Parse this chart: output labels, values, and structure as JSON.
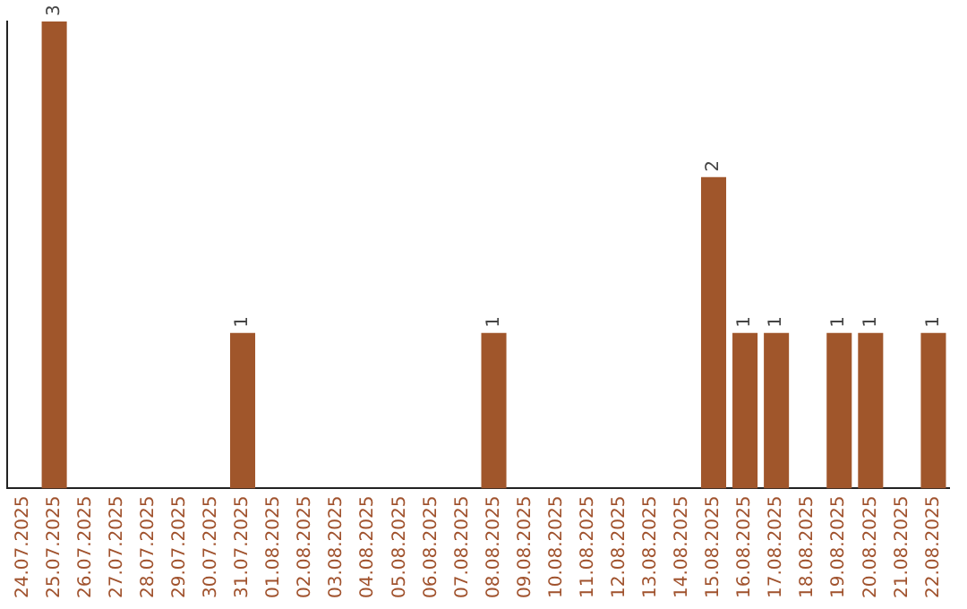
{
  "chart_data": {
    "type": "bar",
    "categories": [
      "24.07.2025",
      "25.07.2025",
      "26.07.2025",
      "27.07.2025",
      "28.07.2025",
      "29.07.2025",
      "30.07.2025",
      "31.07.2025",
      "01.08.2025",
      "02.08.2025",
      "03.08.2025",
      "04.08.2025",
      "05.08.2025",
      "06.08.2025",
      "07.08.2025",
      "08.08.2025",
      "09.08.2025",
      "10.08.2025",
      "11.08.2025",
      "12.08.2025",
      "13.08.2025",
      "14.08.2025",
      "15.08.2025",
      "16.08.2025",
      "17.08.2025",
      "18.08.2025",
      "19.08.2025",
      "20.08.2025",
      "21.08.2025",
      "22.08.2025"
    ],
    "values": [
      0,
      3,
      0,
      0,
      0,
      0,
      0,
      1,
      0,
      0,
      0,
      0,
      0,
      0,
      0,
      1,
      0,
      0,
      0,
      0,
      0,
      0,
      2,
      1,
      1,
      0,
      1,
      1,
      0,
      1
    ],
    "color": "#a0562b",
    "value_labels": [
      null,
      "3",
      null,
      null,
      null,
      null,
      null,
      "1",
      null,
      null,
      null,
      null,
      null,
      null,
      null,
      "1",
      null,
      null,
      null,
      null,
      null,
      null,
      "2",
      "1",
      "1",
      null,
      "1",
      "1",
      null,
      "1"
    ],
    "grid": false,
    "legend": false
  }
}
